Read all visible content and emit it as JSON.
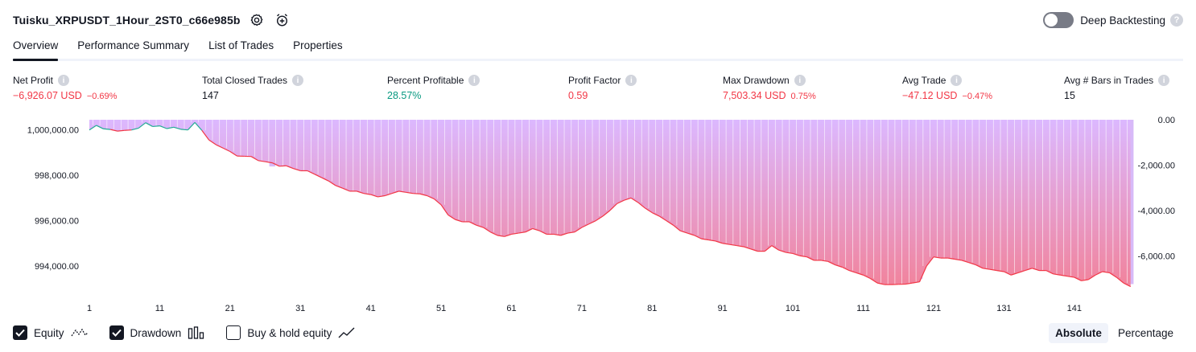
{
  "header": {
    "strategy_title": "Tuisku_XRPUSDT_1Hour_2ST0_c66e985b",
    "settings_icon": "gear-icon",
    "add_alert_icon": "alarm-plus-icon",
    "deep_backtesting_label": "Deep Backtesting",
    "deep_backtesting_enabled": false,
    "help_glyph": "?"
  },
  "tabs": [
    {
      "label": "Overview",
      "active": true
    },
    {
      "label": "Performance Summary",
      "active": false
    },
    {
      "label": "List of Trades",
      "active": false
    },
    {
      "label": "Properties",
      "active": false
    }
  ],
  "metrics": {
    "info_glyph": "i",
    "net_profit": {
      "label": "Net Profit",
      "value": "−6,926.07 USD",
      "pct": "−0.69%",
      "tone": "neg"
    },
    "total_closed_trades": {
      "label": "Total Closed Trades",
      "value": "147",
      "pct": "",
      "tone": "neutral"
    },
    "percent_profitable": {
      "label": "Percent Profitable",
      "value": "28.57%",
      "pct": "",
      "tone": "pos"
    },
    "profit_factor": {
      "label": "Profit Factor",
      "value": "0.59",
      "pct": "",
      "tone": "neg"
    },
    "max_drawdown": {
      "label": "Max Drawdown",
      "value": "7,503.34 USD",
      "pct": "0.75%",
      "tone": "neg"
    },
    "avg_trade": {
      "label": "Avg Trade",
      "value": "−47.12 USD",
      "pct": "−0.47%",
      "tone": "neg"
    },
    "avg_bars": {
      "label": "Avg # Bars in Trades",
      "value": "15",
      "pct": "",
      "tone": "neutral"
    }
  },
  "chart_data": {
    "type": "line",
    "colors": {
      "equity_up": "#22ab94",
      "equity_down": "#f23645",
      "drawdown_fill": "#c9a3f5",
      "gradient_top": "#dcb8ff",
      "gradient_bottom": "#f1839c"
    },
    "x_axis": {
      "ticks": [
        "1",
        "11",
        "21",
        "31",
        "41",
        "51",
        "61",
        "71",
        "81",
        "91",
        "101",
        "111",
        "121",
        "131",
        "141"
      ],
      "range": [
        1,
        148
      ]
    },
    "y_left": {
      "ticks": [
        "1,000,000.00",
        "998,000.00",
        "996,000.00",
        "994,000.00"
      ],
      "tick_values": [
        1000000,
        998000,
        996000,
        994000
      ],
      "range": [
        992900,
        1000450
      ]
    },
    "y_right": {
      "ticks": [
        "0.00",
        "-2,000.00",
        "-4,000.00",
        "-6,000.00"
      ],
      "tick_values": [
        0,
        -2000,
        -4000,
        -6000
      ],
      "range": [
        -7550,
        0
      ]
    },
    "series": [
      {
        "name": "Equity",
        "x_start": 1,
        "values": [
          1000000,
          1000200,
          1000050,
          1000020,
          999950,
          999980,
          1000000,
          1000080,
          1000320,
          1000150,
          1000180,
          1000060,
          1000120,
          1000030,
          1000000,
          1000330,
          999980,
          999560,
          999350,
          999200,
          999050,
          998850,
          998840,
          998830,
          998650,
          998600,
          998550,
          998400,
          998420,
          998300,
          998200,
          998200,
          998050,
          997900,
          997750,
          997550,
          997430,
          997300,
          997300,
          997200,
          997150,
          997050,
          997100,
          997200,
          997300,
          997250,
          997200,
          997180,
          997100,
          996960,
          996700,
          996250,
          996050,
          995950,
          995950,
          995800,
          995700,
          995500,
          995350,
          995300,
          995400,
          995450,
          995500,
          995650,
          995550,
          995400,
          995400,
          995350,
          995450,
          995500,
          995700,
          995850,
          996000,
          996200,
          996450,
          996750,
          996900,
          997000,
          996800,
          996550,
          996350,
          996200,
          996000,
          995800,
          995550,
          995450,
          995350,
          995200,
          995150,
          995100,
          995000,
          994950,
          994900,
          994850,
          994750,
          994650,
          994650,
          994900,
          994700,
          994600,
          994550,
          994450,
          994400,
          994250,
          994250,
          994200,
          994050,
          993950,
          993800,
          993700,
          993600,
          993450,
          993250,
          993180,
          993180,
          993190,
          993200,
          993250,
          993300,
          994000,
          994400,
          994350,
          994350,
          994300,
          994250,
          994150,
          994050,
          993900,
          993850,
          993800,
          993750,
          993600,
          993700,
          993800,
          993900,
          993800,
          993800,
          993650,
          993600,
          993550,
          993500,
          993350,
          993400,
          993600,
          993750,
          993700,
          993500,
          993250,
          993090
        ]
      },
      {
        "name": "Drawdown",
        "x_start": 1,
        "values": [
          0,
          0,
          -160,
          -150,
          -240,
          -250,
          -140,
          -60,
          0,
          -180,
          -150,
          -270,
          -210,
          -300,
          -350,
          0,
          -340,
          -760,
          -960,
          -1120,
          -1260,
          -1440,
          -1510,
          -1500,
          -1690,
          -1740,
          -2060,
          -1970,
          -1900,
          -2020,
          -2120,
          -2130,
          -2270,
          -2420,
          -2570,
          -2790,
          -2940,
          -3000,
          -3000,
          -3100,
          -3150,
          -3350,
          -3200,
          -3100,
          -3030,
          -3080,
          -3120,
          -3140,
          -3220,
          -3420,
          -3600,
          -4050,
          -4280,
          -4370,
          -4370,
          -4450,
          -4580,
          -4850,
          -5000,
          -5050,
          -4930,
          -4900,
          -4840,
          -4660,
          -4780,
          -4930,
          -4920,
          -4980,
          -4890,
          -4830,
          -4620,
          -4460,
          -4330,
          -4130,
          -3860,
          -3560,
          -3440,
          -3330,
          -3500,
          -3770,
          -3960,
          -4100,
          -4310,
          -4530,
          -4700,
          -4880,
          -4970,
          -5120,
          -5180,
          -5220,
          -5330,
          -5380,
          -5420,
          -5480,
          -5590,
          -5670,
          -5670,
          -5430,
          -5620,
          -5720,
          -5780,
          -5870,
          -5920,
          -6070,
          -6070,
          -6130,
          -6260,
          -6360,
          -6530,
          -6640,
          -6740,
          -6880,
          -7060,
          -7130,
          -7130,
          -7120,
          -7120,
          -7060,
          -7020,
          -6330,
          -5920,
          -5980,
          -5990,
          -6030,
          -6080,
          -6170,
          -6270,
          -6420,
          -6480,
          -6530,
          -6580,
          -6720,
          -6630,
          -6510,
          -6420,
          -6530,
          -6530,
          -6670,
          -6720,
          -6770,
          -6830,
          -6980,
          -6930,
          -6720,
          -6570,
          -6630,
          -6820,
          -7070,
          -7250
        ]
      }
    ],
    "legend": [
      {
        "label": "Equity",
        "checked": true,
        "icon": "equity-line-icon"
      },
      {
        "label": "Drawdown",
        "checked": true,
        "icon": "drawdown-bars-icon"
      },
      {
        "label": "Buy & hold equity",
        "checked": false,
        "icon": "buy-hold-line-icon"
      }
    ]
  },
  "scale_switch": {
    "absolute_label": "Absolute",
    "percentage_label": "Percentage",
    "active": "Absolute"
  }
}
